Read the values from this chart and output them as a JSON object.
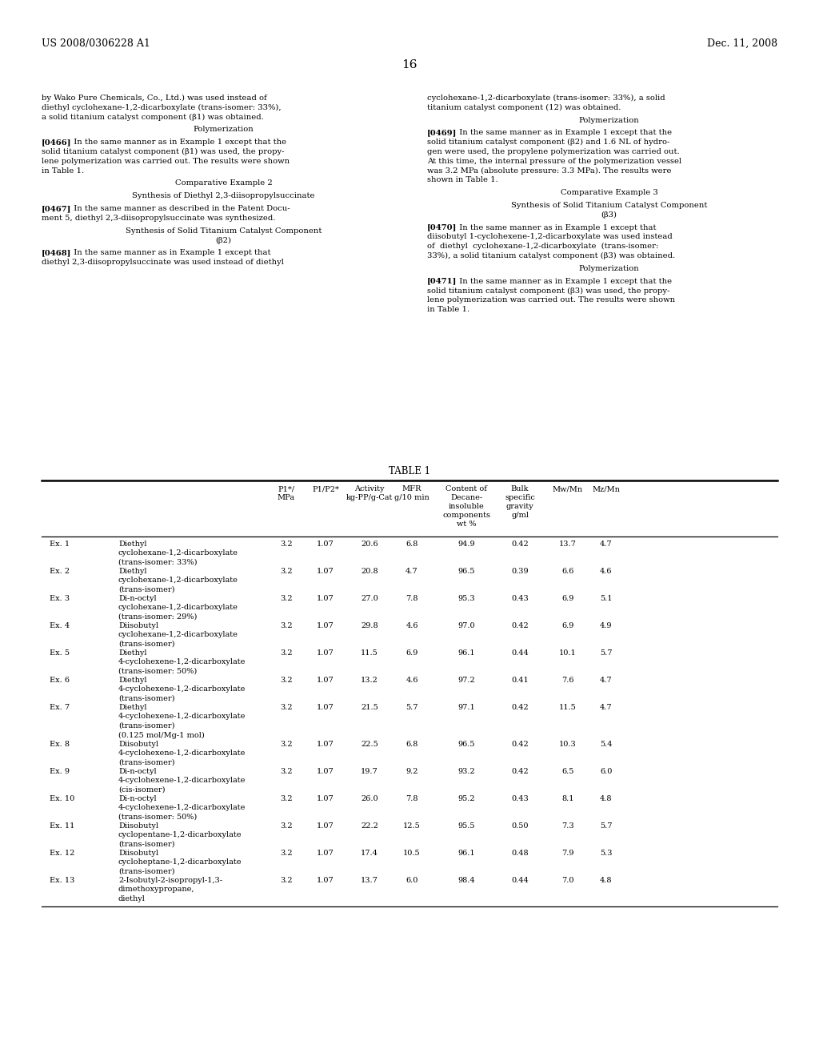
{
  "patent_num": "US 2008/0306228 A1",
  "patent_date": "Dec. 11, 2008",
  "page_num": "16",
  "bg_color": "#ffffff",
  "text_color": "#000000",
  "left_paragraphs": [
    {
      "type": "body",
      "text": "by Wako Pure Chemicals, Co., Ltd.) was used instead of\ndiethyl cyclohexane-1,2-dicarboxylate (trans-isomer: 33%),\na solid titanium catalyst component (β1) was obtained."
    },
    {
      "type": "center",
      "text": "Polymerization"
    },
    {
      "type": "para",
      "tag": "[0466]",
      "text": "  In the same manner as in Example 1 except that the\nsolid titanium catalyst component (β1) was used, the propy-\nlene polymerization was carried out. The results were shown\nin Table 1."
    },
    {
      "type": "center",
      "text": "Comparative Example 2"
    },
    {
      "type": "center",
      "text": "Synthesis of Diethyl 2,3-diisopropylsuccinate"
    },
    {
      "type": "para",
      "tag": "[0467]",
      "text": "  In the same manner as described in the Patent Docu-\nment 5, diethyl 2,3-diisopropylsuccinate was synthesized."
    },
    {
      "type": "center",
      "text": "Synthesis of Solid Titanium Catalyst Component\n(β2)"
    },
    {
      "type": "para",
      "tag": "[0468]",
      "text": "  In the same manner as in Example 1 except that\ndiethyl 2,3-diisopropylsuccinate was used instead of diethyl"
    }
  ],
  "right_paragraphs": [
    {
      "type": "body",
      "text": "cyclohexane-1,2-dicarboxylate (trans-isomer: 33%), a solid\ntitanium catalyst component (12) was obtained."
    },
    {
      "type": "center",
      "text": "Polymerization"
    },
    {
      "type": "para",
      "tag": "[0469]",
      "text": "  In the same manner as in Example 1 except that the\nsolid titanium catalyst component (β2) and 1.6 NL of hydro-\ngen were used, the propylene polymerization was carried out.\nAt this time, the internal pressure of the polymerization vessel\nwas 3.2 MPa (absolute pressure: 3.3 MPa). The results were\nshown in Table 1."
    },
    {
      "type": "center",
      "text": "Comparative Example 3"
    },
    {
      "type": "center",
      "text": "Synthesis of Solid Titanium Catalyst Component\n(β3)"
    },
    {
      "type": "para",
      "tag": "[0470]",
      "text": "  In the same manner as in Example 1 except that\ndiisobutyl 1-cyclohexene-1,2-dicarboxylate was used instead\nof  diethyl  cyclohexane-1,2-dicarboxylate  (trans-isomer:\n33%), a solid titanium catalyst component (β3) was obtained."
    },
    {
      "type": "center",
      "text": "Polymerization"
    },
    {
      "type": "para",
      "tag": "[0471]",
      "text": "  In the same manner as in Example 1 except that the\nsolid titanium catalyst component (β3) was used, the propy-\nlene polymerization was carried out. The results were shown\nin Table 1."
    }
  ],
  "table_title": "TABLE 1",
  "table_rows": [
    [
      "Ex. 1",
      "Diethyl\ncyclohexane-1,2-dicarboxylate\n(trans-isomer: 33%)",
      "3.2",
      "1.07",
      "20.6",
      "6.8",
      "94.9",
      "0.42",
      "13.7",
      "4.7"
    ],
    [
      "Ex. 2",
      "Diethyl\ncyclohexane-1,2-dicarboxylate\n(trans-isomer)",
      "3.2",
      "1.07",
      "20.8",
      "4.7",
      "96.5",
      "0.39",
      "6.6",
      "4.6"
    ],
    [
      "Ex. 3",
      "Di-n-octyl\ncyclohexane-1,2-dicarboxylate\n(trans-isomer: 29%)",
      "3.2",
      "1.07",
      "27.0",
      "7.8",
      "95.3",
      "0.43",
      "6.9",
      "5.1"
    ],
    [
      "Ex. 4",
      "Diisobutyl\ncyclohexane-1,2-dicarboxylate\n(trans-isomer)",
      "3.2",
      "1.07",
      "29.8",
      "4.6",
      "97.0",
      "0.42",
      "6.9",
      "4.9"
    ],
    [
      "Ex. 5",
      "Diethyl\n4-cyclohexene-1,2-dicarboxylate\n(trans-isomer: 50%)",
      "3.2",
      "1.07",
      "11.5",
      "6.9",
      "96.1",
      "0.44",
      "10.1",
      "5.7"
    ],
    [
      "Ex. 6",
      "Diethyl\n4-cyclohexene-1,2-dicarboxylate\n(trans-isomer)",
      "3.2",
      "1.07",
      "13.2",
      "4.6",
      "97.2",
      "0.41",
      "7.6",
      "4.7"
    ],
    [
      "Ex. 7",
      "Diethyl\n4-cyclohexene-1,2-dicarboxylate\n(trans-isomer)\n(0.125 mol/Mg-1 mol)",
      "3.2",
      "1.07",
      "21.5",
      "5.7",
      "97.1",
      "0.42",
      "11.5",
      "4.7"
    ],
    [
      "Ex. 8",
      "Diisobutyl\n4-cyclohexene-1,2-dicarboxylate\n(trans-isomer)",
      "3.2",
      "1.07",
      "22.5",
      "6.8",
      "96.5",
      "0.42",
      "10.3",
      "5.4"
    ],
    [
      "Ex. 9",
      "Di-n-octyl\n4-cyclohexene-1,2-dicarboxylate\n(cis-isomer)",
      "3.2",
      "1.07",
      "19.7",
      "9.2",
      "93.2",
      "0.42",
      "6.5",
      "6.0"
    ],
    [
      "Ex. 10",
      "Di-n-octyl\n4-cyclohexene-1,2-dicarboxylate\n(trans-isomer: 50%)",
      "3.2",
      "1.07",
      "26.0",
      "7.8",
      "95.2",
      "0.43",
      "8.1",
      "4.8"
    ],
    [
      "Ex. 11",
      "Diisobutyl\ncyclopentane-1,2-dicarboxylate\n(trans-isomer)",
      "3.2",
      "1.07",
      "22.2",
      "12.5",
      "95.5",
      "0.50",
      "7.3",
      "5.7"
    ],
    [
      "Ex. 12",
      "Diisobutyl\ncycloheptane-1,2-dicarboxylate\n(trans-isomer)",
      "3.2",
      "1.07",
      "17.4",
      "10.5",
      "96.1",
      "0.48",
      "7.9",
      "5.3"
    ],
    [
      "Ex. 13",
      "2-Isobutyl-2-isopropyl-1,3-\ndimethoxypropane,\ndiethyl",
      "3.2",
      "1.07",
      "13.7",
      "6.0",
      "98.4",
      "0.44",
      "7.0",
      "4.8"
    ]
  ],
  "font_size_body": 7.2,
  "font_size_patent": 9.0,
  "font_size_page": 11.0,
  "font_size_table": 7.0,
  "font_size_table_title": 8.5
}
